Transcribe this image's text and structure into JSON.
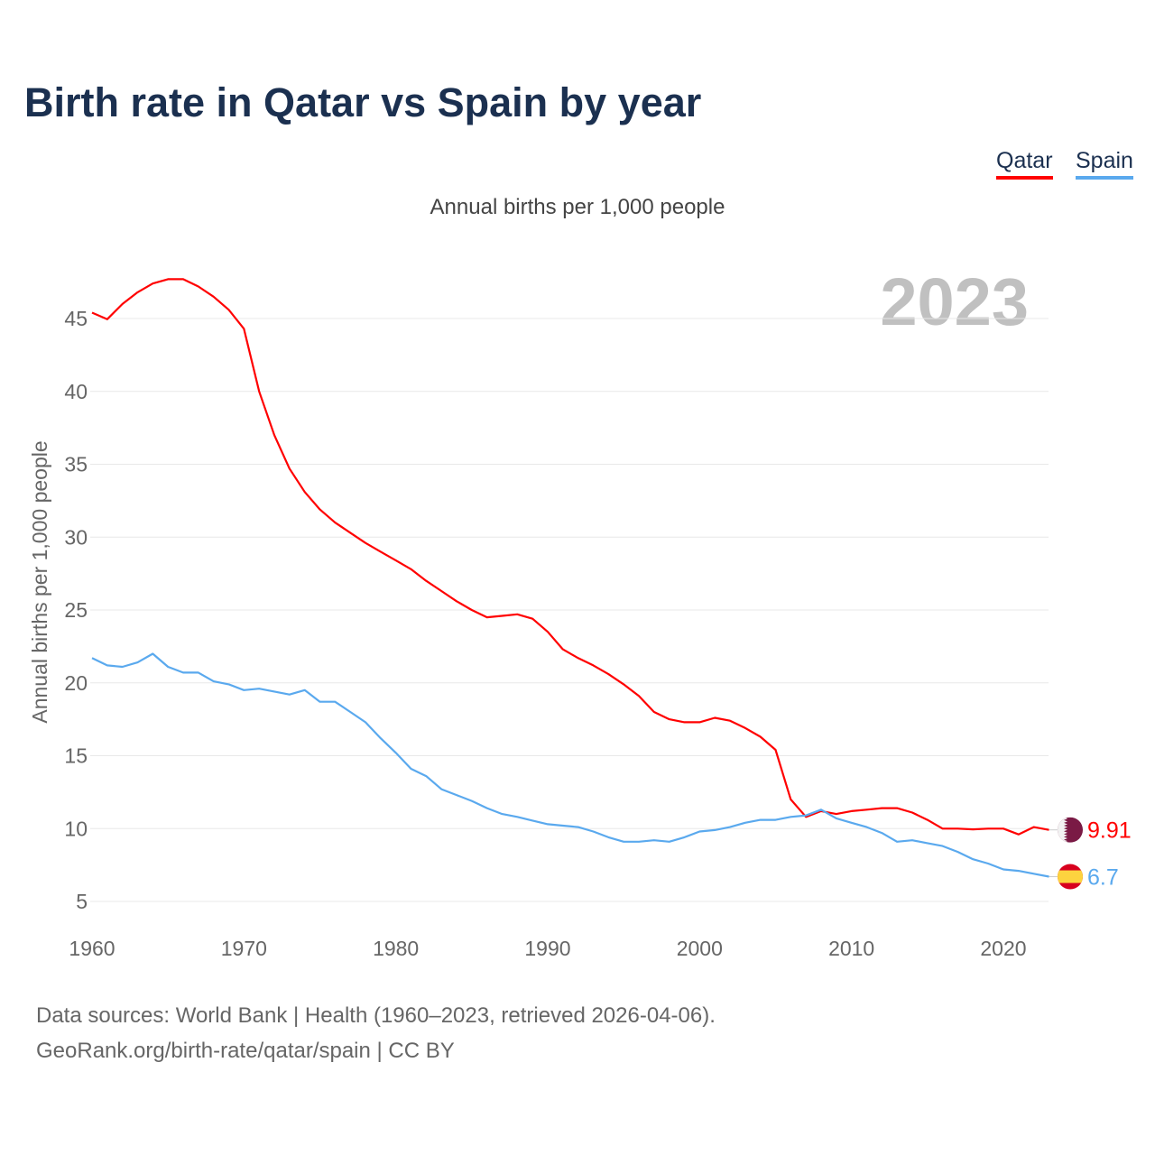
{
  "title": "Birth rate in Qatar vs Spain by year",
  "subtitle": "Annual births per 1,000 people",
  "footer": {
    "line1": "Data sources: World Bank | Health (1960–2023, retrieved 2026-04-06).",
    "line2": "GeoRank.org/birth-rate/qatar/spain | CC BY"
  },
  "chart_data": {
    "type": "line",
    "title": "Birth rate in Qatar vs Spain by year",
    "subtitle": "Annual births per 1,000 people",
    "xlabel": "",
    "ylabel": "Annual births per 1,000 people",
    "year_label": "2023",
    "xlim": [
      1960,
      2023
    ],
    "ylim": [
      5,
      47.7
    ],
    "xticks": [
      1960,
      1970,
      1980,
      1990,
      2000,
      2010,
      2020
    ],
    "yticks": [
      5,
      10,
      15,
      20,
      25,
      30,
      35,
      40,
      45
    ],
    "grid": true,
    "legend": "top-right",
    "x": [
      1960,
      1961,
      1962,
      1963,
      1964,
      1965,
      1966,
      1967,
      1968,
      1969,
      1970,
      1971,
      1972,
      1973,
      1974,
      1975,
      1976,
      1977,
      1978,
      1979,
      1980,
      1981,
      1982,
      1983,
      1984,
      1985,
      1986,
      1987,
      1988,
      1989,
      1990,
      1991,
      1992,
      1993,
      1994,
      1995,
      1996,
      1997,
      1998,
      1999,
      2000,
      2001,
      2002,
      2003,
      2004,
      2005,
      2006,
      2007,
      2008,
      2009,
      2010,
      2011,
      2012,
      2013,
      2014,
      2015,
      2016,
      2017,
      2018,
      2019,
      2020,
      2021,
      2022,
      2023
    ],
    "series": [
      {
        "name": "Qatar",
        "color": "#ff0000",
        "end_label": "9.91",
        "values": [
          45.4,
          44.95,
          46,
          46.8,
          47.4,
          47.7,
          47.7,
          47.2,
          46.5,
          45.6,
          44.3,
          40,
          37,
          34.7,
          33.1,
          31.9,
          31,
          30.3,
          29.6,
          29,
          28.4,
          27.8,
          27,
          26.3,
          25.6,
          25,
          24.5,
          24.6,
          24.7,
          24.4,
          23.5,
          22.3,
          21.7,
          21.2,
          20.6,
          19.9,
          19.1,
          18,
          17.5,
          17.3,
          17.3,
          17.6,
          17.4,
          16.9,
          16.3,
          15.4,
          12,
          10.8,
          11.2,
          11,
          11.2,
          11.3,
          11.4,
          11.4,
          11.1,
          10.6,
          10,
          10,
          9.95,
          10,
          10,
          9.6,
          10.1,
          9.91
        ]
      },
      {
        "name": "Spain",
        "color": "#5aa9ee",
        "end_label": "6.7",
        "values": [
          21.7,
          21.2,
          21.1,
          21.4,
          22,
          21.1,
          20.7,
          20.7,
          20.1,
          19.9,
          19.5,
          19.6,
          19.4,
          19.2,
          19.5,
          18.7,
          18.7,
          18,
          17.3,
          16.2,
          15.2,
          14.1,
          13.6,
          12.7,
          12.3,
          11.9,
          11.4,
          11,
          10.8,
          10.55,
          10.3,
          10.2,
          10.1,
          9.8,
          9.4,
          9.1,
          9.1,
          9.2,
          9.1,
          9.4,
          9.8,
          9.9,
          10.1,
          10.4,
          10.6,
          10.6,
          10.8,
          10.9,
          11.3,
          10.7,
          10.4,
          10.1,
          9.7,
          9.1,
          9.2,
          9,
          8.8,
          8.4,
          7.9,
          7.6,
          7.2,
          7.1,
          6.9,
          6.7
        ]
      }
    ]
  }
}
